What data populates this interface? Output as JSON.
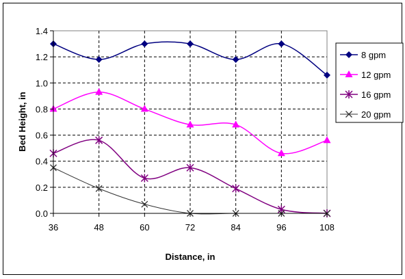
{
  "chart_data": {
    "type": "line",
    "title": "",
    "xlabel": "Distance, in",
    "ylabel": "Bed Height, in",
    "x": [
      36,
      48,
      60,
      72,
      84,
      96,
      108
    ],
    "x_tick_labels": [
      "36",
      "48",
      "60",
      "72",
      "84",
      "96",
      "108"
    ],
    "y_tick_labels": [
      "0.0",
      "0.2",
      "0.4",
      "0.6",
      "0.8",
      "1.0",
      "1.2",
      "1.4"
    ],
    "xlim": [
      36,
      108
    ],
    "ylim": [
      0,
      1.4
    ],
    "y_ticks": [
      0,
      0.2,
      0.4,
      0.6,
      0.8,
      1.0,
      1.2,
      1.4
    ],
    "grid": true,
    "smooth": true,
    "legend_position": "right",
    "series": [
      {
        "name": "8 gpm",
        "values": [
          1.3,
          1.18,
          1.3,
          1.3,
          1.18,
          1.3,
          1.06
        ],
        "color": "#000080",
        "marker": "diamond"
      },
      {
        "name": "12 gpm",
        "values": [
          0.8,
          0.93,
          0.8,
          0.68,
          0.68,
          0.46,
          0.56
        ],
        "color": "#ff00ff",
        "marker": "triangle"
      },
      {
        "name": "16 gpm",
        "values": [
          0.46,
          0.56,
          0.27,
          0.35,
          0.19,
          0.03,
          0.0
        ],
        "color": "#800080",
        "marker": "asterisk"
      },
      {
        "name": "20 gpm",
        "values": [
          0.35,
          0.19,
          0.07,
          0.0,
          0.0,
          0.0,
          0.0
        ],
        "color": "#333333",
        "marker": "x"
      }
    ]
  }
}
